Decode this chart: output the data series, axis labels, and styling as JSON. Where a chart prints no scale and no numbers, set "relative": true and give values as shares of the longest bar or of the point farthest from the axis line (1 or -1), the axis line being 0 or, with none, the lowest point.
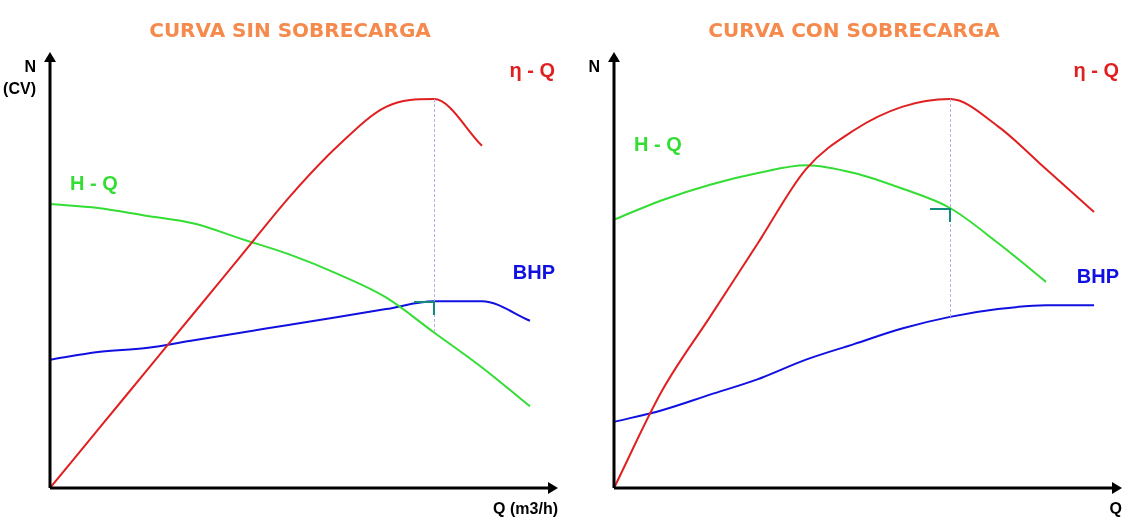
{
  "chart_data": [
    {
      "type": "line",
      "title": "CURVA SIN SOBRECARGA",
      "xlabel": "Q (m3/h)",
      "ylabel": "N\n(CV)",
      "relative": true,
      "tick_labels": false,
      "legend": false,
      "categories": [
        null,
        null,
        null,
        null,
        null,
        null,
        null,
        null,
        null,
        null,
        null
      ],
      "series": [
        {
          "name": "η - Q",
          "color": "#e02020",
          "values": [
            0,
            0.15,
            0.3,
            0.45,
            0.6,
            0.75,
            0.88,
            0.98,
            1.0,
            0.88,
            null
          ]
        },
        {
          "name": "H - Q",
          "color": "#33dd33",
          "values": [
            0.73,
            0.72,
            0.7,
            0.68,
            0.64,
            0.6,
            0.55,
            0.49,
            0.4,
            0.31,
            0.21
          ]
        },
        {
          "name": "BHP",
          "color": "#1010e0",
          "values": [
            0.33,
            0.35,
            0.36,
            0.38,
            0.4,
            0.42,
            0.44,
            0.46,
            0.48,
            0.48,
            0.43
          ]
        }
      ]
    },
    {
      "type": "line",
      "title": "CURVA CON SOBRECARGA",
      "xlabel": "Q",
      "ylabel": "N",
      "relative": true,
      "tick_labels": false,
      "legend": false,
      "categories": [
        null,
        null,
        null,
        null,
        null,
        null,
        null,
        null,
        null,
        null,
        null
      ],
      "series": [
        {
          "name": "η - Q",
          "color": "#e02020",
          "values": [
            0,
            0.25,
            0.44,
            0.63,
            0.82,
            0.92,
            0.98,
            1.0,
            0.93,
            0.82,
            0.71
          ]
        },
        {
          "name": "H - Q",
          "color": "#33dd33",
          "values": [
            0.69,
            0.74,
            0.78,
            0.81,
            0.83,
            0.81,
            0.77,
            0.72,
            0.63,
            0.53,
            null
          ]
        },
        {
          "name": "BHP",
          "color": "#1010e0",
          "values": [
            0.17,
            0.2,
            0.24,
            0.28,
            0.33,
            0.37,
            0.41,
            0.44,
            0.46,
            0.47,
            0.47
          ]
        }
      ]
    }
  ]
}
